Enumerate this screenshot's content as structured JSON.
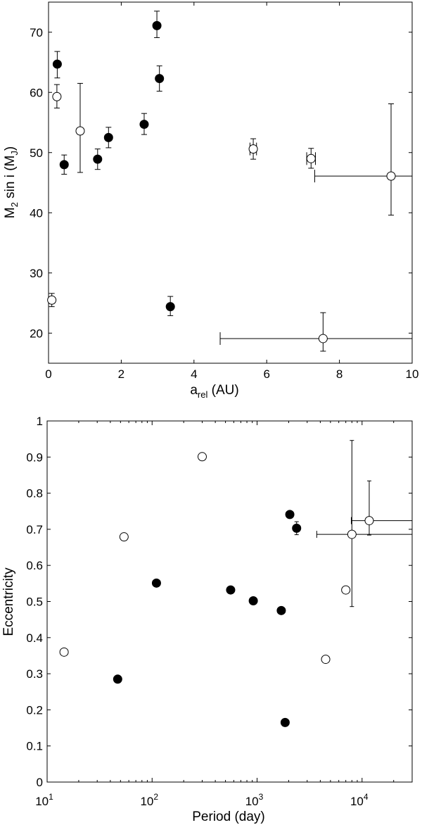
{
  "chart_data": [
    {
      "type": "scatter",
      "title": "",
      "xlabel": "a_rel (AU)",
      "xlabel_main": "a",
      "xlabel_sub": "rel",
      "xlabel_tail": " (AU)",
      "ylabel": "M_2 sin i (M_J)",
      "ylabel_pre": "M",
      "ylabel_sub1": "2",
      "ylabel_mid": " sin i (M",
      "ylabel_sub2": "J",
      "ylabel_tail": ")",
      "xlim": [
        0,
        10
      ],
      "ylim": [
        15,
        75
      ],
      "xticks": [
        0,
        2,
        4,
        6,
        8,
        10
      ],
      "yticks": [
        20,
        30,
        40,
        50,
        60,
        70
      ],
      "xscale": "linear",
      "grid": false,
      "series": [
        {
          "marker": "filled-circle",
          "points": [
            {
              "x": 0.24,
              "y": 64.7,
              "yerr": [
                2.3,
                2.1
              ]
            },
            {
              "x": 0.43,
              "y": 48.0,
              "yerr": [
                1.6,
                1.6
              ]
            },
            {
              "x": 1.35,
              "y": 48.9,
              "yerr": [
                1.7,
                1.7
              ]
            },
            {
              "x": 1.65,
              "y": 52.5,
              "yerr": [
                1.7,
                1.7
              ]
            },
            {
              "x": 2.63,
              "y": 54.7,
              "yerr": [
                1.7,
                1.8
              ]
            },
            {
              "x": 2.98,
              "y": 71.1,
              "yerr": [
                2.0,
                2.4
              ]
            },
            {
              "x": 3.05,
              "y": 62.3,
              "yerr": [
                2.1,
                2.1
              ]
            },
            {
              "x": 3.35,
              "y": 24.4,
              "yerr": [
                1.5,
                1.7
              ]
            }
          ]
        },
        {
          "marker": "open-circle",
          "points": [
            {
              "x": 0.09,
              "y": 25.5,
              "yerr": [
                1.1,
                1.1
              ]
            },
            {
              "x": 0.23,
              "y": 59.3,
              "yerr": [
                1.9,
                2.0
              ]
            },
            {
              "x": 0.87,
              "y": 53.6,
              "yerr": [
                6.9,
                7.9
              ]
            },
            {
              "x": 5.63,
              "y": 50.6,
              "yerr": [
                1.7,
                1.7
              ],
              "xerr": [
                0.09,
                0.09
              ]
            },
            {
              "x": 7.22,
              "y": 49.0,
              "yerr": [
                1.6,
                1.7
              ],
              "xerr": [
                0.12,
                0.12
              ]
            },
            {
              "x": 9.42,
              "y": 46.1,
              "yerr": [
                6.5,
                12.0
              ],
              "xerr": [
                2.1,
                0.58
              ]
            },
            {
              "x": 7.55,
              "y": 19.1,
              "yerr": [
                2.1,
                4.3
              ],
              "xerr": [
                2.83,
                2.45
              ]
            }
          ]
        }
      ]
    },
    {
      "type": "scatter",
      "title": "",
      "xlabel": "Period (day)",
      "ylabel": "Eccentricity",
      "xlim": [
        10,
        30000
      ],
      "ylim": [
        0,
        1
      ],
      "xscale": "log",
      "xticks": [
        10,
        100,
        1000,
        10000
      ],
      "xtick_base": "10",
      "xtick_exps": [
        "1",
        "2",
        "3",
        "4"
      ],
      "yticks": [
        0,
        0.1,
        0.2,
        0.3,
        0.4,
        0.5,
        0.6,
        0.7,
        0.8,
        0.9,
        1
      ],
      "ytick_labels": [
        "0",
        "0.1",
        "0.2",
        "0.3",
        "0.4",
        "0.5",
        "0.6",
        "0.7",
        "0.8",
        "0.9",
        "1"
      ],
      "grid": false,
      "series": [
        {
          "marker": "filled-circle",
          "points": [
            {
              "x": 47,
              "y": 0.285
            },
            {
              "x": 110,
              "y": 0.551
            },
            {
              "x": 560,
              "y": 0.532
            },
            {
              "x": 920,
              "y": 0.502
            },
            {
              "x": 1700,
              "y": 0.475
            },
            {
              "x": 1850,
              "y": 0.165
            },
            {
              "x": 2050,
              "y": 0.741
            },
            {
              "x": 2380,
              "y": 0.703,
              "yerr": [
                0.018,
                0.018
              ]
            }
          ]
        },
        {
          "marker": "open-circle",
          "points": [
            {
              "x": 14.5,
              "y": 0.36
            },
            {
              "x": 54,
              "y": 0.679
            },
            {
              "x": 300,
              "y": 0.901
            },
            {
              "x": 4500,
              "y": 0.34
            },
            {
              "x": 7000,
              "y": 0.532
            },
            {
              "x": 8000,
              "y": 0.686,
              "yerr": [
                0.2,
                0.26
              ],
              "xerr": [
                4300,
                22000
              ]
            },
            {
              "x": 11700,
              "y": 0.724,
              "yerr": [
                0.04,
                0.11
              ],
              "xerr": [
                3800,
                18300
              ]
            }
          ]
        }
      ]
    }
  ]
}
